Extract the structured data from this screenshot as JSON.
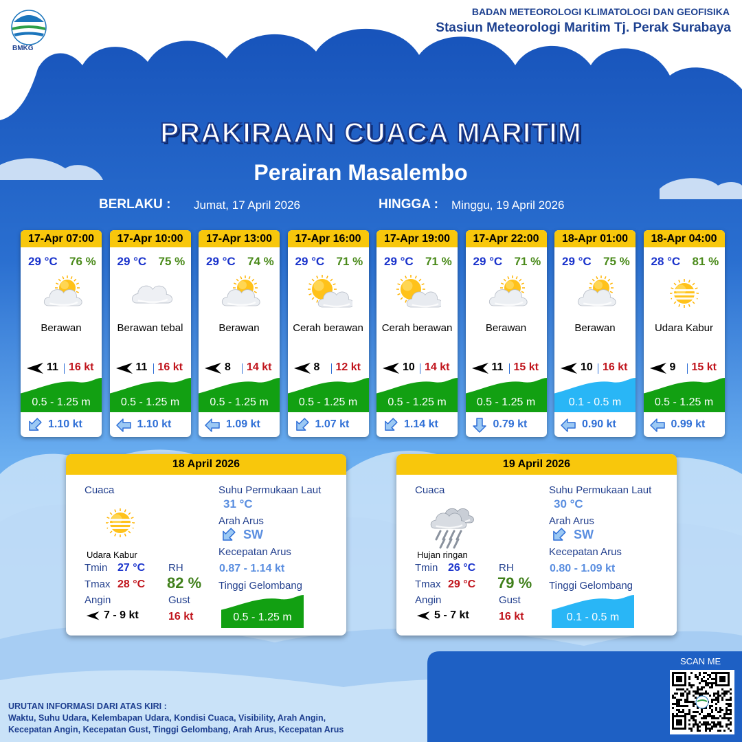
{
  "header": {
    "logo": "BMKG",
    "agency": "BADAN METEOROLOGI KLIMATOLOGI DAN GEOFISIKA",
    "station": "Stasiun Meteorologi Maritim Tj. Perak Surabaya"
  },
  "title": "PRAKIRAAN CUACA MARITIM",
  "subtitle": "Perairan Masalembo",
  "validity": {
    "from_label": "BERLAKU :",
    "from": "Jumat, 17 April 2026",
    "to_label": "HINGGA :",
    "to": "Minggu, 19 April 2026"
  },
  "forecasts": [
    {
      "time": "17-Apr 07:00",
      "temperature": "29 °C",
      "humidity": "76 %",
      "weather": "Berawan",
      "icon": "partly-cloudy",
      "wind": "11",
      "gust": "16 kt",
      "wave": "0.5 - 1.25 m",
      "wave_color": "#12a012",
      "current": "1.10 kt",
      "current_arrow": "SW"
    },
    {
      "time": "17-Apr 10:00",
      "temperature": "29 °C",
      "humidity": "75 %",
      "weather": "Berawan tebal",
      "icon": "cloudy",
      "wind": "11",
      "gust": "16 kt",
      "wave": "0.5 - 1.25 m",
      "wave_color": "#12a012",
      "current": "1.10 kt",
      "current_arrow": "W"
    },
    {
      "time": "17-Apr 13:00",
      "temperature": "29 °C",
      "humidity": "74 %",
      "weather": "Berawan",
      "icon": "partly-cloudy",
      "wind": "8",
      "gust": "14 kt",
      "wave": "0.5 - 1.25 m",
      "wave_color": "#12a012",
      "current": "1.09 kt",
      "current_arrow": "W"
    },
    {
      "time": "17-Apr 16:00",
      "temperature": "29 °C",
      "humidity": "71 %",
      "weather": "Cerah berawan",
      "icon": "sunny-cloudy",
      "wind": "8",
      "gust": "12 kt",
      "wave": "0.5 - 1.25 m",
      "wave_color": "#12a012",
      "current": "1.07 kt",
      "current_arrow": "SW"
    },
    {
      "time": "17-Apr 19:00",
      "temperature": "29 °C",
      "humidity": "71 %",
      "weather": "Cerah berawan",
      "icon": "sunny-cloudy",
      "wind": "10",
      "gust": "14 kt",
      "wave": "0.5 - 1.25 m",
      "wave_color": "#12a012",
      "current": "1.14 kt",
      "current_arrow": "SW"
    },
    {
      "time": "17-Apr 22:00",
      "temperature": "29 °C",
      "humidity": "71 %",
      "weather": "Berawan",
      "icon": "partly-cloudy",
      "wind": "11",
      "gust": "15 kt",
      "wave": "0.5 - 1.25 m",
      "wave_color": "#12a012",
      "current": "0.79 kt",
      "current_arrow": "S"
    },
    {
      "time": "18-Apr 01:00",
      "temperature": "29 °C",
      "humidity": "75 %",
      "weather": "Berawan",
      "icon": "partly-cloudy",
      "wind": "10",
      "gust": "16 kt",
      "wave": "0.1 - 0.5 m",
      "wave_color": "#29b6f6",
      "current": "0.90 kt",
      "current_arrow": "W"
    },
    {
      "time": "18-Apr 04:00",
      "temperature": "28 °C",
      "humidity": "81 %",
      "weather": "Udara Kabur",
      "icon": "haze",
      "wind": "9",
      "gust": "15 kt",
      "wave": "0.5 - 1.25 m",
      "wave_color": "#12a012",
      "current": "0.99 kt",
      "current_arrow": "W"
    }
  ],
  "summary_labels": {
    "weather": "Cuaca",
    "tmin": "Tmin",
    "tmax": "Tmax",
    "wind": "Angin",
    "rh": "RH",
    "gust": "Gust",
    "sst": "Suhu Permukaan Laut",
    "current_direction": "Arah Arus",
    "current_speed": "Kecepatan Arus",
    "wave": "Tinggi Gelombang"
  },
  "summaries": [
    {
      "date": "18 April 2026",
      "weather": "Udara Kabur",
      "icon": "haze",
      "tmin": "27 °C",
      "tmax": "28 °C",
      "rh": "82 %",
      "wind": "7 - 9 kt",
      "gust": "16 kt",
      "sst": "31 °C",
      "current_direction": "SW",
      "current_speed": "0.87 - 1.14 kt",
      "wave": "0.5 - 1.25 m",
      "wave_color": "#12a012"
    },
    {
      "date": "19 April 2026",
      "weather": "Hujan ringan",
      "icon": "rain",
      "tmin": "26 °C",
      "tmax": "29 °C",
      "rh": "79 %",
      "wind": "5 - 7 kt",
      "gust": "16 kt",
      "sst": "30 °C",
      "current_direction": "SW",
      "current_speed": "0.80 - 1.09 kt",
      "wave": "0.1 - 0.5 m",
      "wave_color": "#29b6f6"
    }
  ],
  "footer": {
    "heading": "URUTAN INFORMASI DARI ATAS KIRI :",
    "lines": [
      "Waktu, Suhu Udara, Kelembapan Udara, Kondisi Cuaca, Visibility, Arah Angin,",
      "Kecepatan Angin, Kecepatan Gust, Tinggi Gelombang, Arah Arus, Kecepatan Arus"
    ],
    "scan": "SCAN ME"
  }
}
